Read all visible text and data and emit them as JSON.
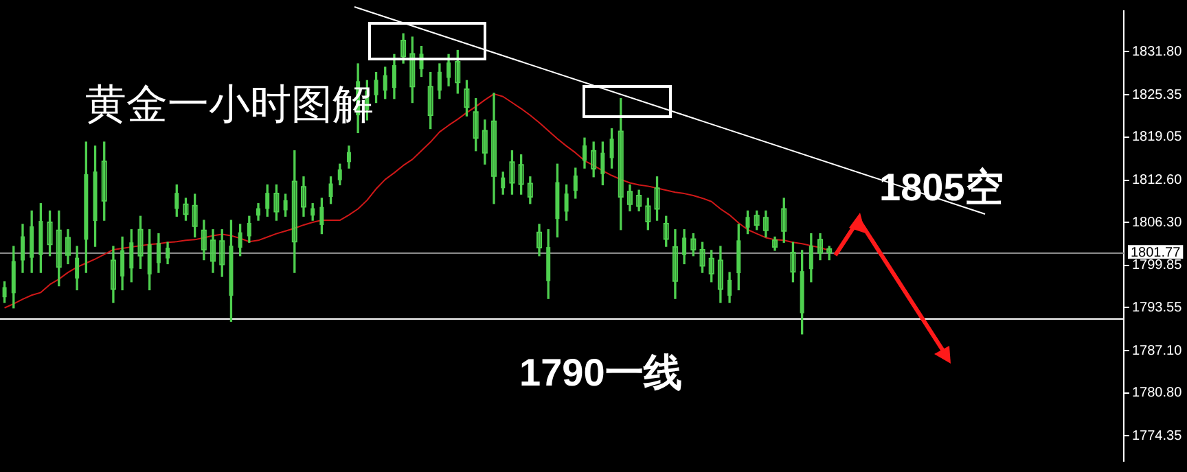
{
  "chart_data": {
    "type": "candlestick",
    "title": "黄金一小时图解",
    "color": "#4fd04f",
    "categories": [
      null,
      null,
      null,
      null,
      null,
      null,
      null,
      null,
      null,
      null,
      null,
      null,
      null,
      null,
      null,
      null,
      null,
      null,
      null,
      null,
      null,
      null,
      null,
      null,
      null,
      null,
      null,
      null,
      null,
      null,
      null,
      null,
      null,
      null,
      null,
      null,
      null,
      null,
      null,
      null,
      null,
      null,
      null,
      null,
      null,
      null,
      null,
      null,
      null,
      null,
      null,
      null,
      null,
      null,
      null,
      null,
      null,
      null,
      null,
      null,
      null,
      null,
      null,
      null,
      null,
      null,
      null,
      null,
      null,
      null,
      null,
      null,
      null,
      null,
      null,
      null,
      null,
      null,
      null,
      null,
      null,
      null,
      null,
      null,
      null,
      null,
      null,
      null,
      null,
      null,
      null,
      null
    ],
    "ohlc": [
      [
        1795.1,
        1797.4,
        1794.3,
        1796.6
      ],
      [
        1795.7,
        1802.7,
        1793.5,
        1800.5
      ],
      [
        1800.6,
        1806.0,
        1798.8,
        1804.2
      ],
      [
        1801.0,
        1808.0,
        1798.8,
        1805.7
      ],
      [
        1801.4,
        1809.1,
        1798.8,
        1806.5
      ],
      [
        1806.3,
        1808.0,
        1801.3,
        1803.0
      ],
      [
        1805.1,
        1808.0,
        1796.8,
        1799.6
      ],
      [
        1804.0,
        1805.2,
        1800.1,
        1801.4
      ],
      [
        1797.9,
        1802.7,
        1796.2,
        1801.0
      ],
      [
        1803.7,
        1818.3,
        1798.8,
        1813.5
      ],
      [
        1806.5,
        1817.7,
        1802.7,
        1813.9
      ],
      [
        1815.4,
        1818.3,
        1806.6,
        1809.5
      ],
      [
        1800.6,
        1802.7,
        1794.3,
        1796.3
      ],
      [
        1798.2,
        1804.1,
        1796.2,
        1802.1
      ],
      [
        1799.4,
        1805.2,
        1797.4,
        1803.3
      ],
      [
        1805.2,
        1807.2,
        1799.4,
        1801.3
      ],
      [
        1798.5,
        1805.2,
        1796.2,
        1803.0
      ],
      [
        1800.2,
        1804.6,
        1798.8,
        1803.2
      ],
      [
        1800.9,
        1803.3,
        1800.1,
        1802.5
      ],
      [
        1808.3,
        1811.9,
        1807.2,
        1810.7
      ],
      [
        1809.0,
        1809.9,
        1806.6,
        1807.5
      ],
      [
        1808.8,
        1810.5,
        1804.1,
        1805.7
      ],
      [
        1805.1,
        1806.6,
        1800.7,
        1802.2
      ],
      [
        1803.6,
        1805.2,
        1798.8,
        1800.5
      ],
      [
        1803.5,
        1805.2,
        1798.2,
        1800.0
      ],
      [
        1795.3,
        1806.6,
        1791.5,
        1802.8
      ],
      [
        1802.5,
        1806.0,
        1801.3,
        1804.8
      ],
      [
        1804.2,
        1807.2,
        1803.3,
        1806.2
      ],
      [
        1807.3,
        1809.1,
        1806.6,
        1808.4
      ],
      [
        1808.3,
        1811.9,
        1807.2,
        1810.7
      ],
      [
        1810.6,
        1811.9,
        1806.6,
        1807.9
      ],
      [
        1808.1,
        1810.5,
        1807.2,
        1809.6
      ],
      [
        1812.4,
        1817.0,
        1798.8,
        1803.4
      ],
      [
        1811.6,
        1813.1,
        1807.2,
        1808.6
      ],
      [
        1807.3,
        1809.1,
        1806.6,
        1808.4
      ],
      [
        1805.9,
        1809.9,
        1804.6,
        1808.6
      ],
      [
        1810.1,
        1813.1,
        1809.1,
        1812.1
      ],
      [
        1812.6,
        1815.0,
        1811.9,
        1814.2
      ],
      [
        1815.3,
        1817.7,
        1814.4,
        1816.8
      ],
      [
        1822.3,
        1830.0,
        1819.7,
        1827.4
      ],
      [
        1823.1,
        1827.5,
        1821.6,
        1826.0
      ],
      [
        1825.3,
        1828.7,
        1824.2,
        1827.6
      ],
      [
        1826.0,
        1829.5,
        1824.8,
        1828.3
      ],
      [
        1826.4,
        1831.4,
        1824.8,
        1829.8
      ],
      [
        1833.5,
        1834.5,
        1830.1,
        1831.1
      ],
      [
        1831.5,
        1834.0,
        1824.2,
        1826.6
      ],
      [
        1829.2,
        1832.6,
        1828.1,
        1831.5
      ],
      [
        1826.6,
        1828.7,
        1820.3,
        1822.3
      ],
      [
        1826.0,
        1830.0,
        1824.8,
        1828.8
      ],
      [
        1827.9,
        1831.4,
        1826.7,
        1830.2
      ],
      [
        1830.3,
        1832.0,
        1825.6,
        1827.2
      ],
      [
        1826.2,
        1827.5,
        1822.2,
        1823.5
      ],
      [
        1822.8,
        1824.8,
        1817.0,
        1818.9
      ],
      [
        1820.0,
        1821.6,
        1815.0,
        1816.7
      ],
      [
        1821.4,
        1825.6,
        1809.1,
        1813.2
      ],
      [
        1811.4,
        1813.8,
        1810.5,
        1813.0
      ],
      [
        1815.3,
        1817.0,
        1810.5,
        1812.2
      ],
      [
        1814.9,
        1816.4,
        1810.5,
        1812.0
      ],
      [
        1812.1,
        1813.1,
        1809.1,
        1810.1
      ],
      [
        1804.8,
        1806.0,
        1801.3,
        1802.5
      ],
      [
        1797.5,
        1805.2,
        1794.9,
        1802.6
      ],
      [
        1806.8,
        1815.0,
        1804.1,
        1812.3
      ],
      [
        1807.9,
        1811.9,
        1806.6,
        1810.6
      ],
      [
        1811.0,
        1814.4,
        1809.9,
        1813.3
      ],
      [
        1815.5,
        1818.9,
        1814.4,
        1817.8
      ],
      [
        1817.0,
        1818.3,
        1813.1,
        1814.3
      ],
      [
        1813.5,
        1818.3,
        1811.9,
        1816.7
      ],
      [
        1815.9,
        1820.3,
        1814.4,
        1818.8
      ],
      [
        1819.9,
        1824.8,
        1805.2,
        1810.1
      ],
      [
        1810.9,
        1811.9,
        1808.0,
        1809.0
      ],
      [
        1810.3,
        1811.1,
        1808.0,
        1808.7
      ],
      [
        1808.7,
        1809.9,
        1805.2,
        1806.4
      ],
      [
        1811.4,
        1813.1,
        1806.6,
        1808.3
      ],
      [
        1806.1,
        1807.2,
        1802.7,
        1803.8
      ],
      [
        1802.6,
        1805.2,
        1794.9,
        1797.5
      ],
      [
        1801.4,
        1805.2,
        1800.1,
        1804.0
      ],
      [
        1803.8,
        1804.6,
        1801.3,
        1802.2
      ],
      [
        1802.2,
        1803.3,
        1798.8,
        1799.8
      ],
      [
        1800.9,
        1802.1,
        1797.4,
        1798.6
      ],
      [
        1800.6,
        1802.7,
        1794.3,
        1796.3
      ],
      [
        1795.3,
        1798.8,
        1794.3,
        1797.7
      ],
      [
        1798.7,
        1806.0,
        1796.2,
        1803.6
      ],
      [
        1805.5,
        1808.0,
        1804.6,
        1807.1
      ],
      [
        1807.3,
        1808.0,
        1805.2,
        1805.9
      ],
      [
        1807.0,
        1808.0,
        1804.1,
        1805.1
      ],
      [
        1803.6,
        1804.1,
        1802.1,
        1802.6
      ],
      [
        1808.3,
        1809.9,
        1803.3,
        1805.0
      ],
      [
        1801.8,
        1803.3,
        1797.4,
        1798.9
      ],
      [
        1792.7,
        1802.1,
        1789.6,
        1799.0
      ],
      [
        1799.3,
        1804.6,
        1797.4,
        1802.8
      ],
      [
        1803.7,
        1804.6,
        1800.7,
        1801.7
      ],
      [
        1802.3,
        1802.7,
        1800.7,
        1801.8
      ]
    ],
    "series": [
      {
        "type": "line",
        "color": "#d01818",
        "values": [
          1793.5,
          1794.1,
          1794.8,
          1795.4,
          1795.8,
          1797.0,
          1797.8,
          1798.8,
          1799.6,
          1800.2,
          1800.8,
          1801.5,
          1802.2,
          1802.4,
          1802.6,
          1802.8,
          1803.0,
          1803.1,
          1803.3,
          1803.4,
          1803.6,
          1803.7,
          1804.0,
          1804.3,
          1804.5,
          1804.3,
          1803.9,
          1803.4,
          1803.6,
          1804.1,
          1804.6,
          1805.0,
          1805.4,
          1805.9,
          1806.3,
          1806.6,
          1806.6,
          1806.6,
          1807.4,
          1808.3,
          1809.6,
          1811.3,
          1812.7,
          1813.7,
          1814.8,
          1815.7,
          1817.0,
          1818.3,
          1819.8,
          1820.8,
          1821.7,
          1822.7,
          1823.6,
          1824.6,
          1825.5,
          1825.1,
          1824.2,
          1823.3,
          1822.3,
          1821.2,
          1820.0,
          1818.8,
          1817.7,
          1816.7,
          1815.5,
          1814.8,
          1814.0,
          1813.3,
          1812.7,
          1812.2,
          1811.9,
          1811.7,
          1811.4,
          1811.1,
          1810.8,
          1810.6,
          1810.3,
          1809.9,
          1809.4,
          1808.3,
          1807.4,
          1806.2,
          1805.2,
          1804.6,
          1804.0,
          1803.7,
          1803.6,
          1803.3,
          1803.1,
          1802.8,
          1802.5,
          1802.1
        ]
      }
    ],
    "ref_lines": [
      {
        "axis": "y",
        "value": 1801.77,
        "label": "1801.77",
        "color": "#8c8c8c"
      },
      {
        "axis": "y",
        "value": 1792,
        "color": "#ffffff"
      }
    ],
    "annotations": [
      "1805空",
      "1790一线"
    ],
    "ylim": [
      1770.6,
      1837.9
    ],
    "yticks": [
      {
        "value": 1831.8,
        "label": "1831.80"
      },
      1825.35,
      1819.05,
      {
        "value": 1812.6,
        "label": "1812.60"
      },
      {
        "value": 1806.3,
        "label": "1806.30"
      },
      1799.85,
      1793.55,
      {
        "value": 1787.1,
        "label": "1787.10"
      },
      {
        "value": 1780.8,
        "label": "1780.80"
      },
      1774.35
    ],
    "tick_labels": "y",
    "grid": false,
    "legend": false,
    "marker": "none",
    "line_style": "solid"
  }
}
